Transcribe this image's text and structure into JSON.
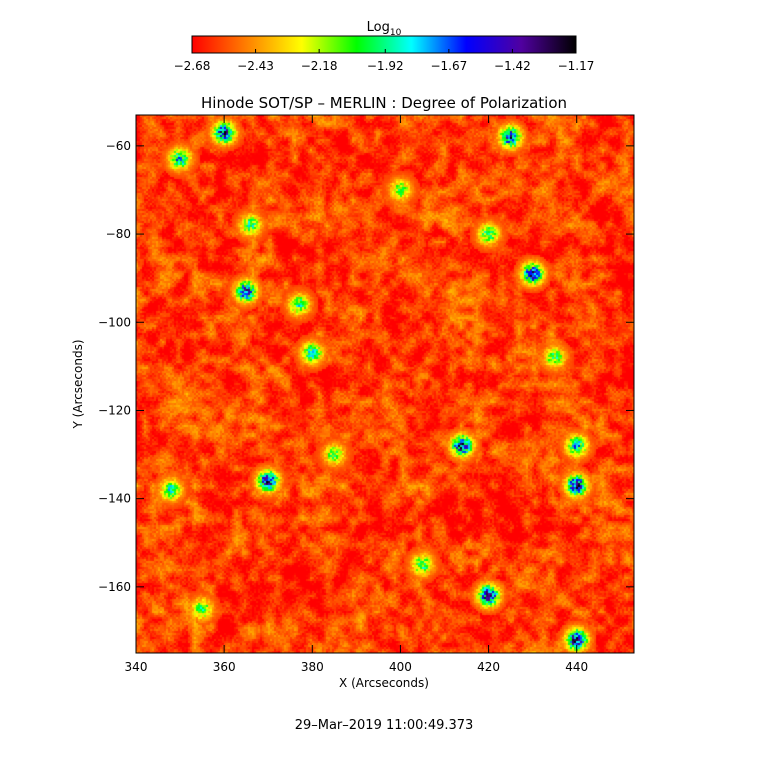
{
  "chart_data": {
    "type": "heatmap",
    "title": "Hinode SOT/SP – MERLIN : Degree of Polarization",
    "xlabel": "X (Arcseconds)",
    "ylabel": "Y (Arcseconds)",
    "xlim": [
      340,
      453
    ],
    "ylim": [
      -175,
      -53
    ],
    "x_ticks": [
      340,
      360,
      380,
      400,
      420,
      440
    ],
    "x_tick_labels": [
      "340",
      "360",
      "380",
      "400",
      "420",
      "440"
    ],
    "y_ticks": [
      -60,
      -80,
      -100,
      -120,
      -140,
      -160
    ],
    "y_tick_labels": [
      "−60",
      "−80",
      "−100",
      "−120",
      "−140",
      "−160"
    ],
    "colorbar": {
      "label": "Log",
      "label_subscript": "10",
      "range": [
        -2.68,
        -1.17
      ],
      "tick_values": [
        -2.68,
        -2.43,
        -2.18,
        -1.92,
        -1.67,
        -1.42,
        -1.17
      ],
      "tick_labels": [
        "−2.68",
        "−2.43",
        "−2.18",
        "−1.92",
        "−1.67",
        "−1.42",
        "−1.17"
      ],
      "colors": [
        "#ff0000",
        "#ff8000",
        "#ffff00",
        "#00ff00",
        "#00ffff",
        "#0000ff",
        "#5000a0",
        "#000000"
      ]
    },
    "background_level": -2.58,
    "strong_regions": [
      {
        "x": 414,
        "y": -128,
        "value": -1.45
      },
      {
        "x": 370,
        "y": -136,
        "value": -1.48
      },
      {
        "x": 440,
        "y": -137,
        "value": -1.45
      },
      {
        "x": 420,
        "y": -162,
        "value": -1.4
      },
      {
        "x": 430,
        "y": -89,
        "value": -1.5
      },
      {
        "x": 365,
        "y": -93,
        "value": -1.55
      },
      {
        "x": 425,
        "y": -58,
        "value": -1.55
      },
      {
        "x": 360,
        "y": -57,
        "value": -1.5
      },
      {
        "x": 350,
        "y": -63,
        "value": -1.8
      },
      {
        "x": 380,
        "y": -107,
        "value": -1.85
      },
      {
        "x": 366,
        "y": -78,
        "value": -1.95
      },
      {
        "x": 420,
        "y": -80,
        "value": -1.95
      },
      {
        "x": 440,
        "y": -128,
        "value": -1.8
      },
      {
        "x": 348,
        "y": -138,
        "value": -1.9
      },
      {
        "x": 377,
        "y": -96,
        "value": -1.95
      },
      {
        "x": 400,
        "y": -70,
        "value": -2.05
      },
      {
        "x": 405,
        "y": -155,
        "value": -1.95
      },
      {
        "x": 355,
        "y": -165,
        "value": -2.0
      },
      {
        "x": 440,
        "y": -172,
        "value": -1.4
      },
      {
        "x": 435,
        "y": -108,
        "value": -2.0
      },
      {
        "x": 385,
        "y": -130,
        "value": -2.05
      }
    ]
  },
  "footer": {
    "timestamp": "29–Mar–2019 11:00:49.373"
  }
}
